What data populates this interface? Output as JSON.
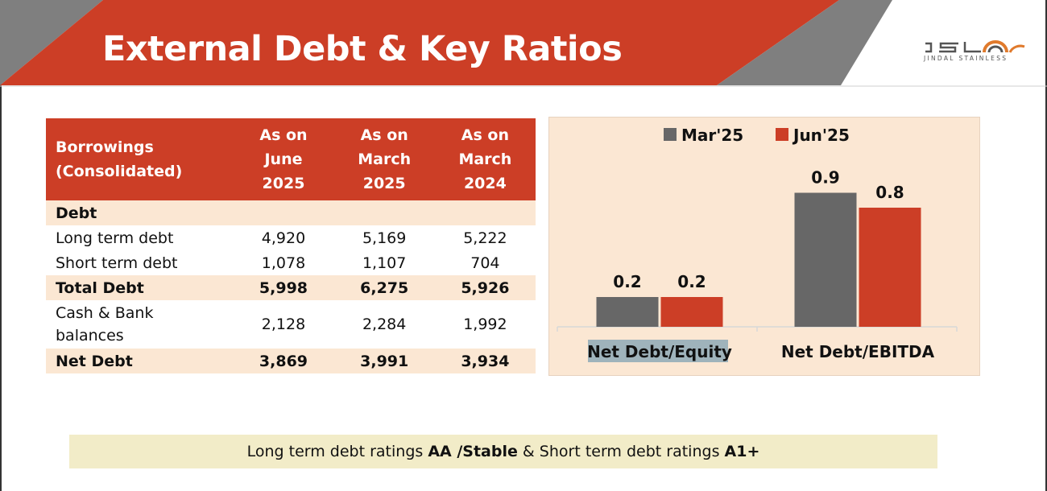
{
  "slide": {
    "title": "External Debt & Key Ratios",
    "logo_text": "JSL",
    "logo_subtext": "JINDAL STAINLESS"
  },
  "table": {
    "header": {
      "label_line1": "Borrowings",
      "label_line2": "(Consolidated)",
      "col1": [
        "As on",
        "June",
        "2025"
      ],
      "col2": [
        "As on",
        "March",
        "2025"
      ],
      "col3": [
        "As on",
        "March",
        "2024"
      ]
    },
    "rows": [
      {
        "label": "Debt",
        "values": [
          "",
          "",
          ""
        ]
      },
      {
        "label": "Long term debt",
        "values": [
          "4,920",
          "5,169",
          "5,222"
        ]
      },
      {
        "label": "Short term debt",
        "values": [
          "1,078",
          "1,107",
          "704"
        ]
      },
      {
        "label": "Total Debt",
        "values": [
          "5,998",
          "6,275",
          "5,926"
        ]
      },
      {
        "label_line1": "Cash & Bank",
        "label_line2": "balances",
        "values": [
          "2,128",
          "2,284",
          "1,992"
        ]
      },
      {
        "label": "Net Debt",
        "values": [
          "3,869",
          "3,991",
          "3,934"
        ]
      }
    ]
  },
  "chart_data": {
    "type": "bar",
    "categories": [
      "Net Debt/Equity",
      "Net Debt/EBITDA"
    ],
    "series": [
      {
        "name": "Mar'25",
        "values": [
          0.2,
          0.9
        ],
        "labels": [
          "0.2",
          "0.9"
        ],
        "color": "#676767"
      },
      {
        "name": "Jun'25",
        "values": [
          0.2,
          0.8
        ],
        "labels": [
          "0.2",
          "0.8"
        ],
        "color": "#cc3e26"
      }
    ],
    "legend": "top",
    "grid": false
  },
  "rating": {
    "part1": "Long term debt ratings ",
    "part2": "AA /Stable",
    "part3": " & Short term debt ratings ",
    "part4": "A1+"
  },
  "colors": {
    "accent": "#cc3e26",
    "gray": "#808080",
    "table_shade": "#fbe7d3",
    "rating_bg": "#f2ecc8"
  }
}
